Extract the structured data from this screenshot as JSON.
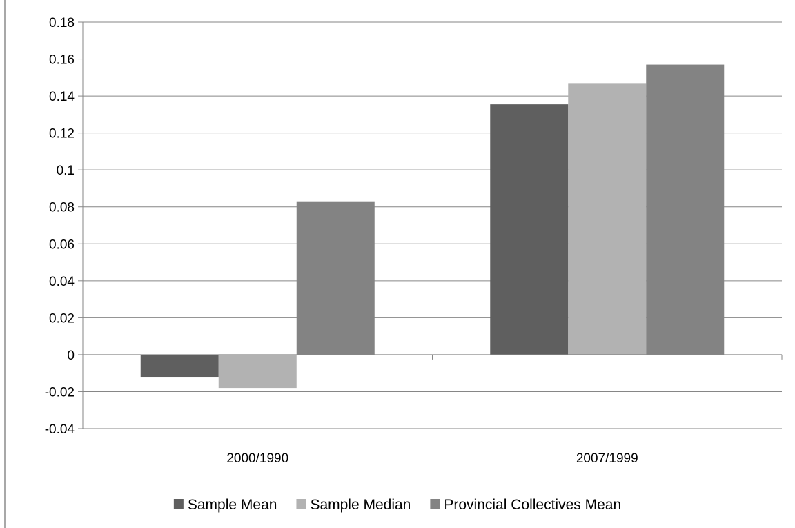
{
  "chart_data": {
    "type": "bar",
    "title": "",
    "xlabel": "",
    "ylabel": "",
    "categories": [
      "2000/1990",
      "2007/1999"
    ],
    "series": [
      {
        "name": "Sample Mean",
        "values": [
          -0.012,
          0.1355
        ],
        "color": "#5f5f5f"
      },
      {
        "name": "Sample Median",
        "values": [
          -0.018,
          0.147
        ],
        "color": "#b2b2b2"
      },
      {
        "name": "Provincial Collectives Mean",
        "values": [
          0.083,
          0.157
        ],
        "color": "#838383"
      }
    ],
    "ylim": [
      -0.04,
      0.18
    ],
    "yticks": [
      -0.04,
      -0.02,
      0,
      0.02,
      0.04,
      0.06,
      0.08,
      0.1,
      0.12,
      0.14,
      0.16,
      0.18
    ],
    "ytick_labels": [
      "-0.04",
      "-0.02",
      "0",
      "0.02",
      "0.04",
      "0.06",
      "0.08",
      "0.1",
      "0.12",
      "0.14",
      "0.16",
      "0.18"
    ],
    "grid": true,
    "legend_position": "bottom"
  }
}
